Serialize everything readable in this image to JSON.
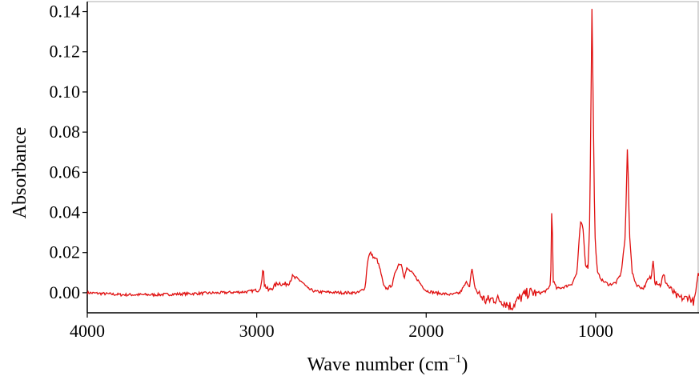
{
  "chart_data": {
    "type": "line",
    "title": "",
    "xlabel": "Wave number (cm",
    "xlabel_sup": "−1",
    "xlabel_end": ")",
    "ylabel": "Absorbance",
    "xlim": [
      4000,
      390
    ],
    "ylim": [
      -0.01,
      0.145
    ],
    "x_ticks": [
      4000,
      3000,
      2000,
      1000
    ],
    "x_tick_labels": [
      "4000",
      "3000",
      "2000",
      "1000"
    ],
    "y_ticks": [
      0.0,
      0.02,
      0.04,
      0.06,
      0.08,
      0.1,
      0.12,
      0.14
    ],
    "y_tick_labels": [
      "0.00",
      "0.02",
      "0.04",
      "0.06",
      "0.08",
      "0.10",
      "0.12",
      "0.14"
    ],
    "grid": false,
    "colors": {
      "line": "#e01010",
      "axis": "#000000",
      "frame": "#c8c8c8"
    },
    "series": [
      {
        "points": [
          [
            4000,
            0.0
          ],
          [
            3800,
            -0.001
          ],
          [
            3600,
            -0.001
          ],
          [
            3400,
            -0.0005
          ],
          [
            3200,
            0.0
          ],
          [
            3050,
            0.0005
          ],
          [
            2990,
            0.0015
          ],
          [
            2970,
            0.0045
          ],
          [
            2962,
            0.015
          ],
          [
            2955,
            0.004
          ],
          [
            2930,
            0.001
          ],
          [
            2900,
            0.003
          ],
          [
            2870,
            0.005
          ],
          [
            2840,
            0.004
          ],
          [
            2810,
            0.005
          ],
          [
            2790,
            0.008
          ],
          [
            2770,
            0.007
          ],
          [
            2740,
            0.006
          ],
          [
            2700,
            0.002
          ],
          [
            2650,
            0.0005
          ],
          [
            2500,
            0.0
          ],
          [
            2400,
            0.0
          ],
          [
            2360,
            0.0025
          ],
          [
            2345,
            0.0165
          ],
          [
            2330,
            0.02
          ],
          [
            2310,
            0.0175
          ],
          [
            2290,
            0.0165
          ],
          [
            2270,
            0.011
          ],
          [
            2250,
            0.003
          ],
          [
            2230,
            0.002
          ],
          [
            2200,
            0.004
          ],
          [
            2180,
            0.011
          ],
          [
            2160,
            0.0145
          ],
          [
            2145,
            0.014
          ],
          [
            2130,
            0.0075
          ],
          [
            2115,
            0.012
          ],
          [
            2090,
            0.0105
          ],
          [
            2060,
            0.0075
          ],
          [
            2030,
            0.004
          ],
          [
            2000,
            0.001
          ],
          [
            1950,
            0.0
          ],
          [
            1850,
            -0.001
          ],
          [
            1800,
            0.0
          ],
          [
            1760,
            0.0055
          ],
          [
            1745,
            0.003
          ],
          [
            1730,
            0.012
          ],
          [
            1715,
            0.0035
          ],
          [
            1700,
            0.0005
          ],
          [
            1650,
            -0.004
          ],
          [
            1600,
            -0.003
          ],
          [
            1550,
            -0.004
          ],
          [
            1500,
            -0.007
          ],
          [
            1450,
            -0.003
          ],
          [
            1400,
            0.0
          ],
          [
            1320,
            0.0
          ],
          [
            1280,
            0.0015
          ],
          [
            1265,
            0.005
          ],
          [
            1258,
            0.047
          ],
          [
            1250,
            0.006
          ],
          [
            1230,
            0.002
          ],
          [
            1180,
            0.003
          ],
          [
            1140,
            0.0045
          ],
          [
            1110,
            0.01
          ],
          [
            1090,
            0.035
          ],
          [
            1075,
            0.033
          ],
          [
            1060,
            0.014
          ],
          [
            1045,
            0.0125
          ],
          [
            1035,
            0.035
          ],
          [
            1028,
            0.09
          ],
          [
            1022,
            0.1435
          ],
          [
            1015,
            0.098
          ],
          [
            1005,
            0.03
          ],
          [
            990,
            0.01
          ],
          [
            960,
            0.006
          ],
          [
            920,
            0.004
          ],
          [
            880,
            0.005
          ],
          [
            850,
            0.0095
          ],
          [
            825,
            0.028
          ],
          [
            812,
            0.074
          ],
          [
            800,
            0.03
          ],
          [
            785,
            0.01
          ],
          [
            760,
            0.004
          ],
          [
            720,
            0.002
          ],
          [
            690,
            0.006
          ],
          [
            670,
            0.008
          ],
          [
            660,
            0.0185
          ],
          [
            650,
            0.005
          ],
          [
            640,
            0.006
          ],
          [
            620,
            0.0035
          ],
          [
            600,
            0.0085
          ],
          [
            580,
            0.0045
          ],
          [
            560,
            0.002
          ],
          [
            520,
            -0.002
          ],
          [
            480,
            -0.003
          ],
          [
            450,
            -0.002
          ],
          [
            420,
            -0.005
          ],
          [
            400,
            0.005
          ],
          [
            392,
            0.01
          ]
        ]
      }
    ]
  }
}
